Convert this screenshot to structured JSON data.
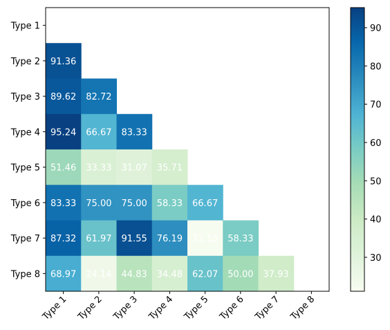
{
  "chart_data": {
    "type": "heatmap",
    "title": "",
    "xlabel": "",
    "ylabel": "",
    "x_categories": [
      "Type 1",
      "Type 2",
      "Type 3",
      "Type 4",
      "Type 5",
      "Type 6",
      "Type 7",
      "Type 8"
    ],
    "y_categories": [
      "Type 1",
      "Type 2",
      "Type 3",
      "Type 4",
      "Type 5",
      "Type 6",
      "Type 7",
      "Type 8"
    ],
    "values": [
      [
        null,
        null,
        null,
        null,
        null,
        null,
        null,
        null
      ],
      [
        91.36,
        null,
        null,
        null,
        null,
        null,
        null,
        null
      ],
      [
        89.62,
        82.72,
        null,
        null,
        null,
        null,
        null,
        null
      ],
      [
        95.24,
        66.67,
        83.33,
        null,
        null,
        null,
        null,
        null
      ],
      [
        51.46,
        33.33,
        31.07,
        35.71,
        null,
        null,
        null,
        null
      ],
      [
        83.33,
        75.0,
        75.0,
        58.33,
        66.67,
        null,
        null,
        null
      ],
      [
        87.32,
        61.97,
        91.55,
        76.19,
        21.13,
        58.33,
        null,
        null
      ],
      [
        68.97,
        24.14,
        44.83,
        34.48,
        62.07,
        50.0,
        37.93,
        null
      ]
    ],
    "value_labels": [
      [],
      [
        "91.36"
      ],
      [
        "89.62",
        "82.72"
      ],
      [
        "95.24",
        "66.67",
        "83.33"
      ],
      [
        "51.46",
        "33.33",
        "31.07",
        "35.71"
      ],
      [
        "83.33",
        "75.00",
        "75.00",
        "58.33",
        "66.67"
      ],
      [
        "87.32",
        "61.97",
        "91.55",
        "76.19",
        "21.13",
        "58.33"
      ],
      [
        "68.97",
        "24.14",
        "44.83",
        "34.48",
        "62.07",
        "50.00",
        "37.93"
      ]
    ],
    "mask": "upper triangle incl. diagonal",
    "colormap": "GnBu",
    "colormap_stops": [
      "#f7fcf0",
      "#e0f3db",
      "#ccebc5",
      "#a8ddb5",
      "#7bccc4",
      "#4eb3d3",
      "#2b8cbe",
      "#0868ac",
      "#084081"
    ],
    "color_range": [
      21.13,
      95.24
    ],
    "colorbar": {
      "ticks": [
        30,
        40,
        50,
        60,
        70,
        80,
        90
      ],
      "tick_labels": [
        "30",
        "40",
        "50",
        "60",
        "70",
        "80",
        "90"
      ],
      "placement": "right"
    },
    "grid": false,
    "x_tick_rotation_deg": 45
  }
}
